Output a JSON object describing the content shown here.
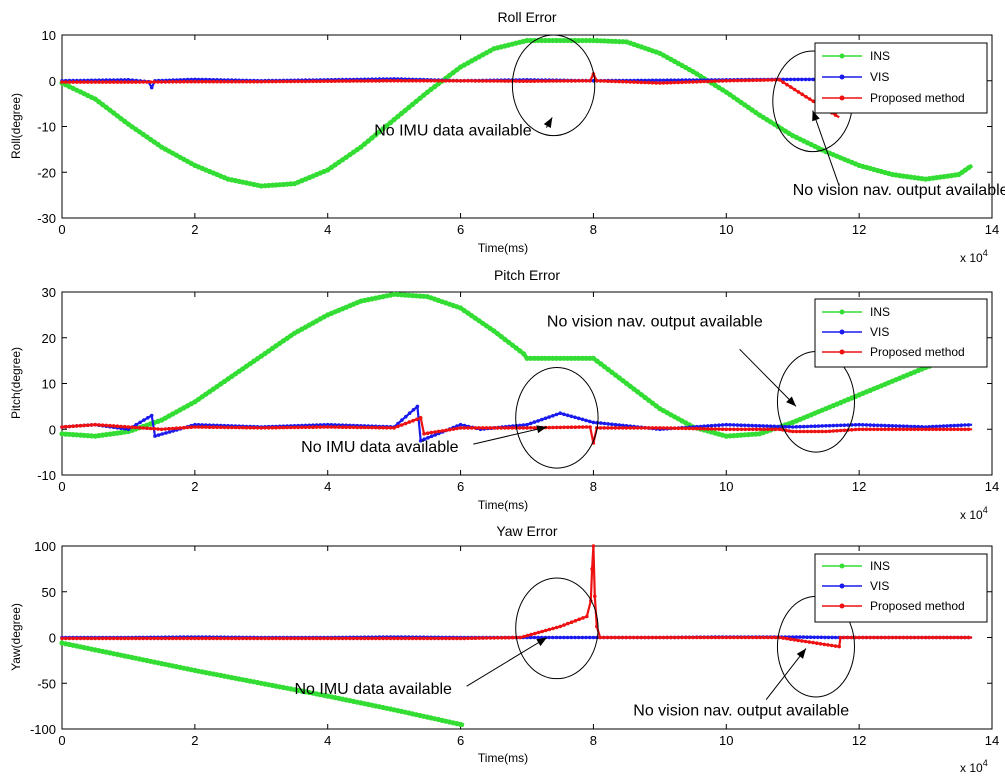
{
  "chart_data": [
    {
      "type": "line",
      "title": "Roll Error",
      "xlabel": "Time(ms)",
      "ylabel": "Roll(degree)",
      "x_multiplier_label": "x 10",
      "x_multiplier_exp": "4",
      "xlim": [
        0,
        14
      ],
      "ylim": [
        -30,
        10
      ],
      "xticks": [
        "0",
        "2",
        "4",
        "6",
        "8",
        "10",
        "12",
        "14"
      ],
      "yticks": [
        "-30",
        "-20",
        "-10",
        "0",
        "10"
      ],
      "legend_position": "top-right",
      "series": [
        {
          "name": "INS",
          "color": "#33dd33",
          "x": [
            0,
            0.5,
            1,
            1.5,
            2,
            2.5,
            3,
            3.5,
            4,
            4.5,
            5,
            5.5,
            6,
            6.5,
            7,
            7.5,
            8,
            8.5,
            9,
            9.5,
            10,
            10.5,
            11,
            11.5,
            12,
            12.5,
            13,
            13.5,
            13.7
          ],
          "y": [
            -0.5,
            -4,
            -9.5,
            -14.5,
            -18.5,
            -21.5,
            -23,
            -22.5,
            -19.5,
            -14.5,
            -8.5,
            -2.5,
            3,
            7,
            8.8,
            8.8,
            8.8,
            8.5,
            6,
            2,
            -2.5,
            -7.5,
            -12,
            -15.5,
            -18.5,
            -20.5,
            -21.5,
            -20.5,
            -18.5
          ]
        },
        {
          "name": "VIS",
          "color": "#1a1aee",
          "x": [
            0,
            1,
            1.3,
            1.35,
            1.4,
            2,
            3,
            4,
            5,
            6,
            7,
            8,
            9,
            10,
            10.8,
            11.7,
            12,
            13,
            13.7
          ],
          "y": [
            0,
            0.2,
            -0.2,
            -1.5,
            0,
            0.3,
            0,
            0.2,
            0.4,
            0,
            0.2,
            0,
            0.1,
            0.2,
            0.3,
            0.3,
            0.2,
            0,
            0
          ]
        },
        {
          "name": "Proposed method",
          "color": "#ee1111",
          "x": [
            0,
            1,
            2,
            3,
            4,
            5,
            6,
            7,
            7.95,
            8,
            8.05,
            9,
            10,
            10.8,
            11.2,
            11.7
          ],
          "y": [
            -0.3,
            -0.3,
            -0.2,
            -0.2,
            -0.1,
            0,
            0,
            -0.1,
            0,
            1.5,
            0,
            -0.5,
            0,
            0.2,
            -3.5,
            -8
          ]
        }
      ],
      "annotations": [
        {
          "text": "No IMU data available",
          "x": 4.7,
          "y": -12,
          "ellipse": {
            "cx": 7.4,
            "cy": -1,
            "rx": 0.62,
            "ry": 11
          },
          "arrow_to": [
            7.38,
            -8
          ]
        },
        {
          "text": "No vision nav. output available",
          "x": 11,
          "y": -25,
          "ellipse": {
            "cx": 11.3,
            "cy": -4.5,
            "rx": 0.6,
            "ry": 11
          },
          "arrow_to": [
            11.3,
            -6.5
          ],
          "arrow_from": [
            11.7,
            -23
          ]
        }
      ]
    },
    {
      "type": "line",
      "title": "Pitch Error",
      "xlabel": "Time(ms)",
      "ylabel": "Pitch(degree)",
      "x_multiplier_label": "x 10",
      "x_multiplier_exp": "4",
      "xlim": [
        0,
        14
      ],
      "ylim": [
        -10,
        30
      ],
      "xticks": [
        "0",
        "2",
        "4",
        "6",
        "8",
        "10",
        "12",
        "14"
      ],
      "yticks": [
        "-10",
        "0",
        "10",
        "20",
        "30"
      ],
      "legend_position": "top-right",
      "series": [
        {
          "name": "INS",
          "color": "#33dd33",
          "x": [
            0,
            0.5,
            1,
            1.5,
            2,
            2.5,
            3,
            3.5,
            4,
            4.5,
            5,
            5.5,
            6,
            6.5,
            6.95,
            7,
            8,
            8.5,
            9,
            9.5,
            10,
            10.5,
            11,
            11.5,
            12,
            12.5,
            13,
            13.3
          ],
          "y": [
            -1,
            -1.5,
            -0.5,
            2,
            6,
            11,
            16,
            21,
            25,
            28,
            29.5,
            29,
            26.5,
            21.5,
            16.5,
            15.5,
            15.5,
            10,
            4.5,
            0.5,
            -1.5,
            -1,
            1.5,
            4.5,
            7.5,
            10.5,
            13.5,
            15
          ]
        },
        {
          "name": "VIS",
          "color": "#1a1aee",
          "x": [
            0,
            0.5,
            1,
            1.35,
            1.4,
            2,
            3,
            4,
            5,
            5.35,
            5.4,
            6,
            6.3,
            7,
            7.5,
            8,
            9,
            10,
            11,
            12,
            13,
            13.7
          ],
          "y": [
            0.5,
            1,
            0,
            3,
            -1.5,
            1,
            0.5,
            1,
            0.5,
            5,
            -2.5,
            1,
            0,
            1,
            3.5,
            1.5,
            0,
            1,
            0.5,
            1,
            0.5,
            1
          ]
        },
        {
          "name": "Proposed method",
          "color": "#ee1111",
          "x": [
            0,
            0.5,
            1,
            1.5,
            2,
            3,
            4,
            5,
            5.4,
            5.45,
            6,
            7,
            7.95,
            8,
            8.05,
            9,
            10,
            10.8,
            11,
            11.5,
            12,
            13,
            13.7
          ],
          "y": [
            0.5,
            1,
            0.5,
            0,
            0.5,
            0.3,
            0.5,
            0.3,
            2.5,
            -1,
            0.3,
            0.3,
            0.5,
            -3,
            0.3,
            0.3,
            0,
            0,
            -0.5,
            -0.5,
            0,
            0,
            0
          ]
        }
      ],
      "annotations": [
        {
          "text": "No IMU data available",
          "x": 3.6,
          "y": -5,
          "ellipse": {
            "cx": 7.45,
            "cy": 2.5,
            "rx": 0.62,
            "ry": 11
          },
          "arrow_to": [
            7.3,
            0.5
          ]
        },
        {
          "text": "No vision nav. output available",
          "x": 7.3,
          "y": 22.5,
          "ellipse": {
            "cx": 11.35,
            "cy": 6,
            "rx": 0.58,
            "ry": 11
          },
          "arrow_to": [
            11.05,
            5
          ],
          "arrow_from": [
            10.2,
            17.5
          ]
        }
      ]
    },
    {
      "type": "line",
      "title": "Yaw Error",
      "xlabel": "Time(ms)",
      "ylabel": "Yaw(degree)",
      "x_multiplier_label": "x 10",
      "x_multiplier_exp": "4",
      "xlim": [
        0,
        14
      ],
      "ylim": [
        -100,
        100
      ],
      "xticks": [
        "0",
        "2",
        "4",
        "6",
        "8",
        "10",
        "12",
        "14"
      ],
      "yticks": [
        "-100",
        "-50",
        "0",
        "50",
        "100"
      ],
      "legend_position": "top-right",
      "series": [
        {
          "name": "INS",
          "color": "#33dd33",
          "x": [
            0,
            1,
            2,
            3,
            4,
            5,
            6,
            6.05
          ],
          "y": [
            -6,
            -21,
            -36,
            -50,
            -64,
            -79,
            -95,
            -96
          ]
        },
        {
          "name": "VIS",
          "color": "#1a1aee",
          "x": [
            0,
            1,
            2,
            3,
            4,
            5,
            6,
            7,
            7.5,
            8,
            8.1,
            9,
            10,
            11,
            11.7,
            12,
            13,
            13.7
          ],
          "y": [
            0,
            0,
            0.5,
            0,
            0,
            0.5,
            0,
            0,
            0,
            0,
            0,
            0,
            0.5,
            0.5,
            0,
            0,
            0,
            0
          ]
        },
        {
          "name": "Proposed method",
          "color": "#ee1111",
          "x": [
            0,
            1,
            2,
            3,
            4,
            5,
            6,
            6.9,
            7.5,
            7.9,
            7.96,
            7.98,
            8.0,
            8.02,
            8.05,
            8.1,
            9,
            10,
            10.8,
            11.7,
            11.72,
            12,
            13,
            13.7
          ],
          "y": [
            -1,
            -1,
            -1,
            -1,
            -1,
            -1,
            -1,
            0,
            12,
            23,
            40,
            75,
            100,
            45,
            12,
            0,
            0,
            0,
            0,
            -10,
            0,
            0,
            0,
            0
          ]
        }
      ],
      "annotations": [
        {
          "text": "No IMU data available",
          "x": 3.5,
          "y": -62,
          "ellipse": {
            "cx": 7.45,
            "cy": 10,
            "rx": 0.62,
            "ry": 55
          },
          "arrow_to": [
            7.3,
            0
          ]
        },
        {
          "text": "No vision nav. output available",
          "x": 8.6,
          "y": -85,
          "ellipse": {
            "cx": 11.35,
            "cy": -10,
            "rx": 0.58,
            "ry": 55
          },
          "arrow_to": [
            11.2,
            -12
          ],
          "arrow_from": [
            10.6,
            -68
          ]
        }
      ]
    }
  ]
}
